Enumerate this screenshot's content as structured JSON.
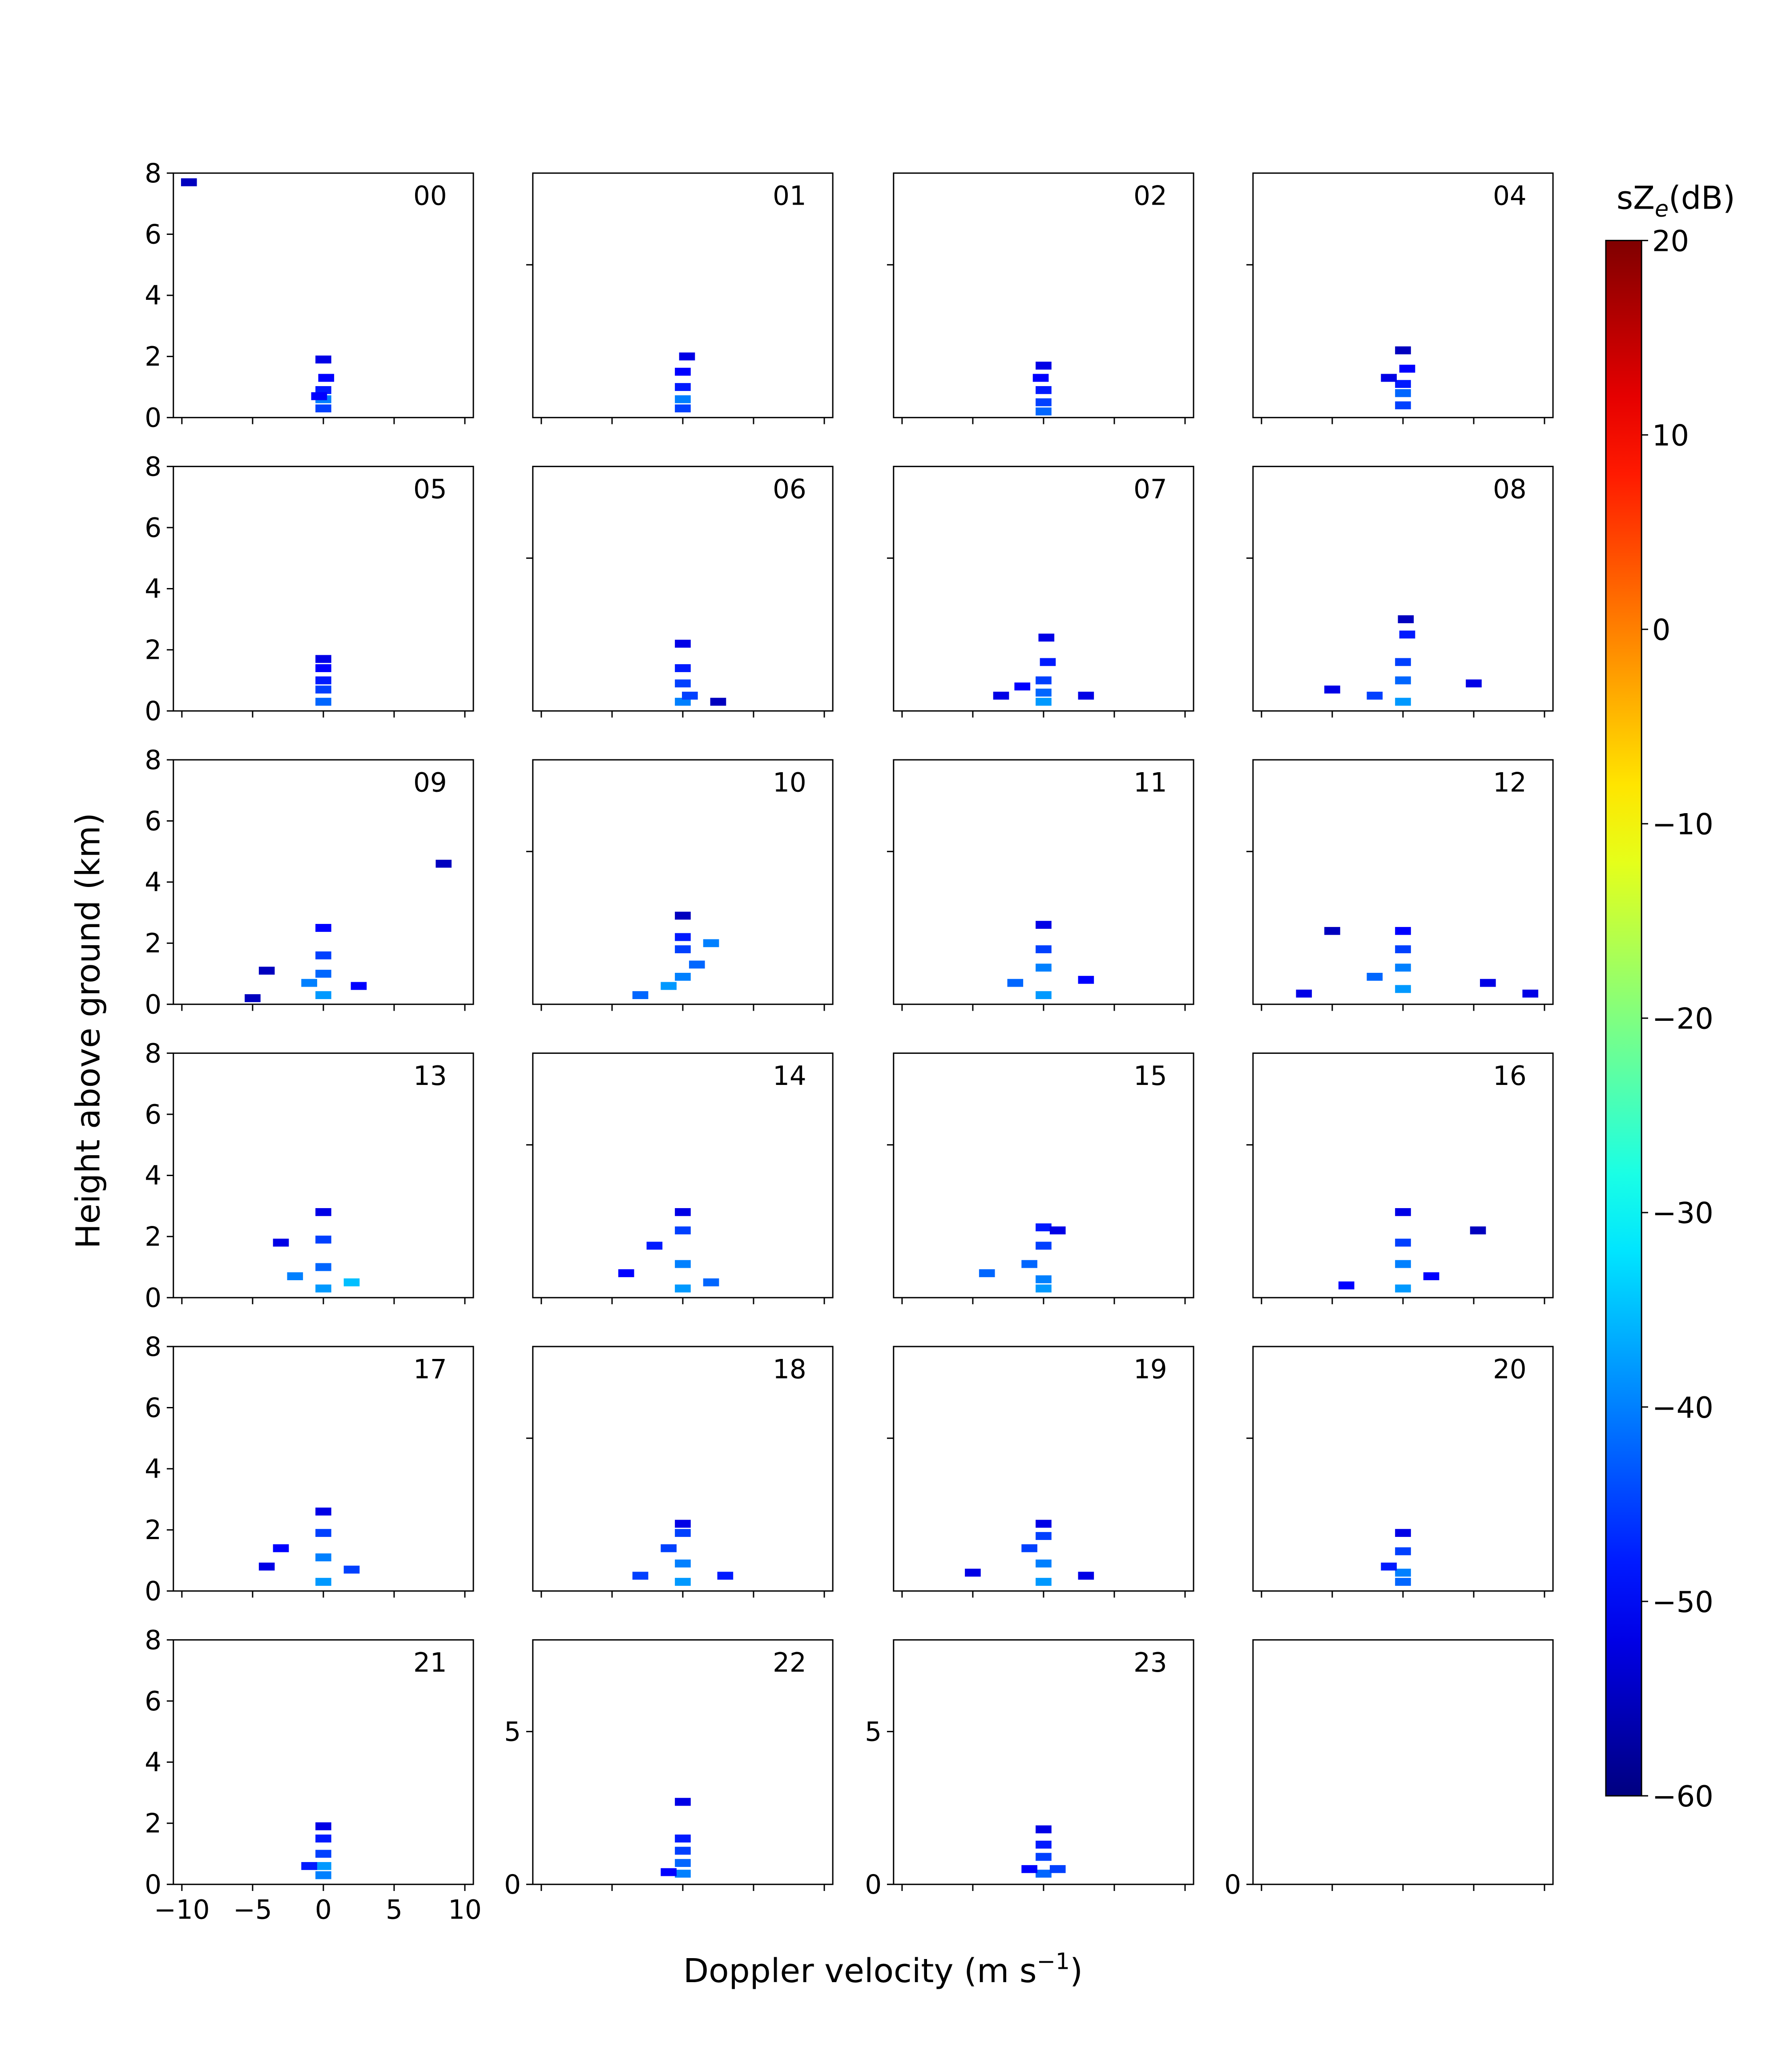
{
  "chart_data": {
    "type": "spectrogram-grid",
    "xlabel": [
      "Doppler velocity (m s",
      "−1",
      ")"
    ],
    "ylabel": "Height above ground (km)",
    "colorbar_label": [
      "sZ",
      "e",
      "(dB)"
    ],
    "colormap": "jet",
    "clim": [
      -60,
      20
    ],
    "cticks": [
      {
        "value": -60,
        "label": "−60"
      },
      {
        "value": -50,
        "label": "−50"
      },
      {
        "value": -40,
        "label": "−40"
      },
      {
        "value": -30,
        "label": "−30"
      },
      {
        "value": -20,
        "label": "−20"
      },
      {
        "value": -10,
        "label": "−10"
      },
      0,
      10,
      20
    ],
    "xlim": [
      -10.6,
      10.6
    ],
    "ylim": [
      0,
      8
    ],
    "xticks": [
      {
        "value": -10,
        "label": "−10"
      },
      {
        "value": -5,
        "label": "−5"
      },
      0,
      5,
      10
    ],
    "panels": [
      {
        "title": "00",
        "yticks": [
          0,
          2,
          4,
          6,
          8
        ],
        "x": [
          0,
          0,
          0,
          -0.3,
          0.2,
          0,
          -9.5
        ],
        "y": [
          0.3,
          0.6,
          0.9,
          0.7,
          1.3,
          1.9,
          7.7
        ],
        "values": [
          -45,
          -40,
          -48,
          -50,
          -50,
          -52,
          -55
        ]
      },
      {
        "title": "01",
        "ytick_marks": [
          5
        ],
        "x": [
          0,
          0,
          0,
          0,
          0.3
        ],
        "y": [
          0.3,
          0.6,
          1.0,
          1.5,
          2.0
        ],
        "values": [
          -45,
          -40,
          -48,
          -50,
          -52
        ]
      },
      {
        "title": "02",
        "ytick_marks": [
          5
        ],
        "x": [
          0,
          0,
          0,
          -0.2,
          0
        ],
        "y": [
          0.2,
          0.5,
          0.9,
          1.3,
          1.7
        ],
        "values": [
          -42,
          -45,
          -48,
          -50,
          -52
        ]
      },
      {
        "title": "04",
        "ytick_marks": [
          5
        ],
        "x": [
          0,
          0,
          0,
          -1,
          0.3,
          0
        ],
        "y": [
          0.4,
          0.8,
          1.1,
          1.3,
          1.6,
          2.2
        ],
        "values": [
          -45,
          -42,
          -48,
          -52,
          -50,
          -55
        ]
      },
      {
        "title": "05",
        "yticks": [
          0,
          2,
          4,
          6,
          8
        ],
        "x": [
          0,
          0,
          0,
          0,
          0
        ],
        "y": [
          0.3,
          0.7,
          1.0,
          1.4,
          1.7
        ],
        "values": [
          -42,
          -45,
          -48,
          -50,
          -52
        ]
      },
      {
        "title": "06",
        "ytick_marks": [
          5
        ],
        "x": [
          0,
          0.5,
          0,
          0,
          0,
          2.5
        ],
        "y": [
          0.3,
          0.5,
          0.9,
          1.4,
          2.2,
          0.3
        ],
        "values": [
          -40,
          -45,
          -45,
          -48,
          -52,
          -55
        ]
      },
      {
        "title": "07",
        "ytick_marks": [
          5
        ],
        "x": [
          0,
          0,
          0,
          -3,
          3,
          0.3,
          0.2,
          -1.5
        ],
        "y": [
          0.3,
          0.6,
          1.0,
          0.5,
          0.5,
          1.6,
          2.4,
          0.8
        ],
        "values": [
          -38,
          -42,
          -45,
          -52,
          -52,
          -48,
          -52,
          -50
        ]
      },
      {
        "title": "08",
        "ytick_marks": [
          5
        ],
        "x": [
          0,
          -2,
          -5,
          5,
          0,
          0,
          0.3,
          0.2
        ],
        "y": [
          0.3,
          0.5,
          0.7,
          0.9,
          1.0,
          1.6,
          2.5,
          3.0
        ],
        "values": [
          -38,
          -45,
          -52,
          -52,
          -42,
          -45,
          -48,
          -55
        ]
      },
      {
        "title": "09",
        "yticks": [
          0,
          2,
          4,
          6,
          8
        ],
        "x": [
          0,
          -1,
          2.5,
          0,
          0,
          0,
          -4,
          -5,
          8.5
        ],
        "y": [
          0.3,
          0.7,
          0.6,
          1.0,
          1.6,
          2.5,
          1.1,
          0.2,
          4.6
        ],
        "values": [
          -38,
          -40,
          -50,
          -42,
          -45,
          -50,
          -55,
          -55,
          -55
        ]
      },
      {
        "title": "10",
        "ytick_marks": [
          5
        ],
        "x": [
          -3,
          -1,
          0,
          1,
          0,
          0,
          2,
          0
        ],
        "y": [
          0.3,
          0.6,
          0.9,
          1.3,
          1.8,
          2.2,
          2.0,
          2.9
        ],
        "values": [
          -42,
          -38,
          -40,
          -42,
          -45,
          -48,
          -40,
          -55
        ]
      },
      {
        "title": "11",
        "ytick_marks": [
          5
        ],
        "x": [
          0,
          -2,
          3,
          0,
          0,
          0
        ],
        "y": [
          0.3,
          0.7,
          0.8,
          1.2,
          1.8,
          2.6
        ],
        "values": [
          -38,
          -42,
          -50,
          -40,
          -45,
          -52
        ]
      },
      {
        "title": "12",
        "ytick_marks": [
          5
        ],
        "x": [
          -7,
          0,
          -2,
          0,
          0,
          0,
          6,
          -5,
          9
        ],
        "y": [
          0.35,
          0.5,
          0.9,
          1.2,
          1.8,
          2.4,
          0.7,
          2.4,
          0.35
        ],
        "values": [
          -52,
          -38,
          -42,
          -40,
          -45,
          -50,
          -52,
          -55,
          -52
        ]
      },
      {
        "title": "13",
        "yticks": [
          0,
          2,
          4,
          6,
          8
        ],
        "x": [
          0,
          2,
          -2,
          0,
          -3,
          0,
          0
        ],
        "y": [
          0.3,
          0.5,
          0.7,
          1.0,
          1.8,
          1.9,
          2.8
        ],
        "values": [
          -38,
          -35,
          -40,
          -42,
          -52,
          -45,
          -52
        ]
      },
      {
        "title": "14",
        "ytick_marks": [
          5
        ],
        "x": [
          0,
          2,
          -4,
          0,
          -2,
          0,
          0
        ],
        "y": [
          0.3,
          0.5,
          0.8,
          1.1,
          1.7,
          2.2,
          2.8
        ],
        "values": [
          -38,
          -42,
          -50,
          -40,
          -48,
          -45,
          -52
        ]
      },
      {
        "title": "15",
        "ytick_marks": [
          5
        ],
        "x": [
          0,
          -4,
          0,
          -1,
          0,
          0,
          1
        ],
        "y": [
          0.3,
          0.8,
          0.6,
          1.1,
          1.7,
          2.3,
          2.2
        ],
        "values": [
          -38,
          -42,
          -40,
          -42,
          -45,
          -48,
          -52
        ]
      },
      {
        "title": "16",
        "ytick_marks": [
          5
        ],
        "x": [
          0,
          -4,
          2,
          0,
          0,
          0,
          5.3
        ],
        "y": [
          0.3,
          0.4,
          0.7,
          1.1,
          1.8,
          2.8,
          2.2
        ],
        "values": [
          -38,
          -50,
          -50,
          -40,
          -45,
          -52,
          -55
        ]
      },
      {
        "title": "17",
        "yticks": [
          0,
          2,
          4,
          6,
          8
        ],
        "x": [
          0,
          -4,
          2,
          0,
          -3,
          0,
          0
        ],
        "y": [
          0.3,
          0.8,
          0.7,
          1.1,
          1.4,
          1.9,
          2.6
        ],
        "values": [
          -38,
          -52,
          -45,
          -40,
          -50,
          -45,
          -52
        ]
      },
      {
        "title": "18",
        "ytick_marks": [
          5
        ],
        "x": [
          0,
          -3,
          3,
          0,
          -1,
          0,
          0
        ],
        "y": [
          0.3,
          0.5,
          0.5,
          0.9,
          1.4,
          1.9,
          2.2
        ],
        "values": [
          -38,
          -45,
          -48,
          -40,
          -45,
          -45,
          -52
        ]
      },
      {
        "title": "19",
        "ytick_marks": [
          5
        ],
        "x": [
          0,
          -5,
          3,
          0,
          -1,
          0,
          0
        ],
        "y": [
          0.3,
          0.6,
          0.5,
          0.9,
          1.4,
          1.8,
          2.2
        ],
        "values": [
          -38,
          -52,
          -52,
          -40,
          -45,
          -45,
          -52
        ]
      },
      {
        "title": "20",
        "ytick_marks": [
          5
        ],
        "x": [
          0,
          0,
          -1,
          0,
          0
        ],
        "y": [
          0.3,
          0.6,
          0.8,
          1.3,
          1.9
        ],
        "values": [
          -42,
          -40,
          -48,
          -45,
          -52
        ]
      },
      {
        "title": "21",
        "yticks": [
          0,
          2,
          4,
          6,
          8
        ],
        "xticklabels": true,
        "x": [
          0,
          0,
          -1,
          0,
          0,
          0
        ],
        "y": [
          0.3,
          0.6,
          0.6,
          1.0,
          1.5,
          1.9
        ],
        "values": [
          -40,
          -38,
          -48,
          -45,
          -48,
          -52
        ]
      },
      {
        "title": "22",
        "yticks": [
          0,
          5
        ],
        "x": [
          0,
          0,
          -1,
          0,
          0,
          0
        ],
        "y": [
          0.35,
          0.7,
          0.4,
          1.1,
          1.5,
          2.7
        ],
        "values": [
          -40,
          -42,
          -50,
          -45,
          -48,
          -52
        ]
      },
      {
        "title": "23",
        "yticks": [
          0,
          5
        ],
        "x": [
          0,
          1,
          -1,
          0,
          0,
          0
        ],
        "y": [
          0.35,
          0.5,
          0.5,
          0.9,
          1.3,
          1.8
        ],
        "values": [
          -42,
          -45,
          -50,
          -45,
          -48,
          -52
        ]
      },
      {
        "yticks": [
          0
        ],
        "x": [],
        "y": [],
        "values": []
      }
    ]
  }
}
